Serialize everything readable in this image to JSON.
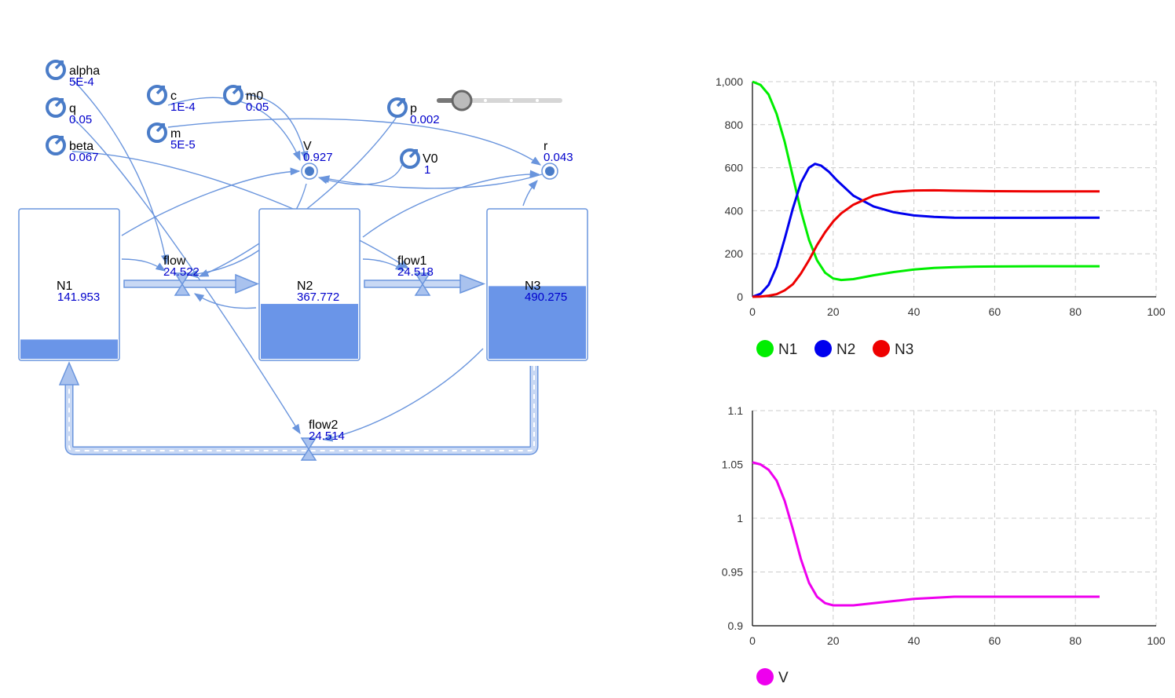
{
  "parameters": [
    {
      "id": "alpha",
      "label": "alpha",
      "value": "5E-4"
    },
    {
      "id": "q",
      "label": "q",
      "value": "0.05"
    },
    {
      "id": "beta",
      "label": "beta",
      "value": "0.067"
    },
    {
      "id": "c",
      "label": "c",
      "value": "1E-4"
    },
    {
      "id": "m",
      "label": "m",
      "value": "5E-5"
    },
    {
      "id": "m0",
      "label": "m0",
      "value": "0.05"
    },
    {
      "id": "p",
      "label": "p",
      "value": "0.002"
    },
    {
      "id": "V0",
      "label": "V0",
      "value": "1"
    }
  ],
  "variables": [
    {
      "id": "V",
      "label": "V",
      "value": "0.927"
    },
    {
      "id": "r",
      "label": "r",
      "value": "0.043"
    }
  ],
  "stocks": [
    {
      "id": "N1",
      "label": "N1",
      "value": "141.953",
      "level": 0.13
    },
    {
      "id": "N2",
      "label": "N2",
      "value": "367.772",
      "level": 0.37
    },
    {
      "id": "N3",
      "label": "N3",
      "value": "490.275",
      "level": 0.49
    }
  ],
  "flows": [
    {
      "id": "flow",
      "label": "flow",
      "value": "24.522"
    },
    {
      "id": "flow1",
      "label": "flow1",
      "value": "24.518"
    },
    {
      "id": "flow2",
      "label": "flow2",
      "value": "24.514"
    }
  ],
  "slider": {
    "value": 0.2
  },
  "colors": {
    "accent": "#6a95dd",
    "stock_fill": "#6a95e8",
    "value_text": "#0000cc",
    "N1": "#00ee00",
    "N2": "#0000ee",
    "N3": "#ee0000",
    "V": "#ee00ee"
  },
  "chart_data": [
    {
      "type": "line",
      "xlim": [
        0,
        100
      ],
      "ylim": [
        0,
        1000
      ],
      "x_ticks": [
        "0",
        "20",
        "40",
        "60",
        "80",
        "100"
      ],
      "y_ticks": [
        "0",
        "200",
        "400",
        "600",
        "800",
        "1,000"
      ],
      "grid": true,
      "legend_position": "bottom-left",
      "series": [
        {
          "name": "N1",
          "color": "#00ee00",
          "points": [
            [
              0,
              1000
            ],
            [
              2,
              985
            ],
            [
              4,
              940
            ],
            [
              6,
              850
            ],
            [
              8,
              720
            ],
            [
              10,
              560
            ],
            [
              12,
              400
            ],
            [
              14,
              265
            ],
            [
              16,
              170
            ],
            [
              18,
              112
            ],
            [
              20,
              85
            ],
            [
              22,
              78
            ],
            [
              25,
              82
            ],
            [
              30,
              100
            ],
            [
              35,
              115
            ],
            [
              40,
              127
            ],
            [
              45,
              134
            ],
            [
              50,
              138
            ],
            [
              55,
              140
            ],
            [
              60,
              141
            ],
            [
              70,
              142
            ],
            [
              80,
              142
            ],
            [
              86,
              142
            ]
          ]
        },
        {
          "name": "N2",
          "color": "#0000ee",
          "points": [
            [
              0,
              0
            ],
            [
              2,
              14
            ],
            [
              4,
              55
            ],
            [
              6,
              140
            ],
            [
              8,
              270
            ],
            [
              10,
              410
            ],
            [
              12,
              530
            ],
            [
              14,
              600
            ],
            [
              15.5,
              618
            ],
            [
              17,
              610
            ],
            [
              19,
              580
            ],
            [
              21,
              540
            ],
            [
              25,
              470
            ],
            [
              30,
              420
            ],
            [
              35,
              393
            ],
            [
              40,
              378
            ],
            [
              45,
              371
            ],
            [
              50,
              368
            ],
            [
              60,
              367
            ],
            [
              70,
              367
            ],
            [
              80,
              368
            ],
            [
              86,
              368
            ]
          ]
        },
        {
          "name": "N3",
          "color": "#ee0000",
          "points": [
            [
              0,
              0
            ],
            [
              2,
              1
            ],
            [
              4,
              5
            ],
            [
              6,
              12
            ],
            [
              8,
              30
            ],
            [
              10,
              58
            ],
            [
              12,
              108
            ],
            [
              14,
              170
            ],
            [
              16,
              240
            ],
            [
              18,
              300
            ],
            [
              20,
              350
            ],
            [
              22,
              388
            ],
            [
              25,
              428
            ],
            [
              30,
              470
            ],
            [
              35,
              488
            ],
            [
              40,
              494
            ],
            [
              45,
              495
            ],
            [
              50,
              493
            ],
            [
              60,
              491
            ],
            [
              70,
              490
            ],
            [
              80,
              490
            ],
            [
              86,
              490
            ]
          ]
        }
      ]
    },
    {
      "type": "line",
      "xlim": [
        0,
        100
      ],
      "ylim": [
        0.9,
        1.1
      ],
      "x_ticks": [
        "0",
        "20",
        "40",
        "60",
        "80",
        "100"
      ],
      "y_ticks": [
        "0.9",
        "0.95",
        "1",
        "1.05",
        "1.1"
      ],
      "grid": true,
      "legend_position": "bottom-left",
      "series": [
        {
          "name": "V",
          "color": "#ee00ee",
          "points": [
            [
              0,
              1.052
            ],
            [
              2,
              1.05
            ],
            [
              4,
              1.045
            ],
            [
              6,
              1.035
            ],
            [
              8,
              1.016
            ],
            [
              10,
              0.99
            ],
            [
              12,
              0.962
            ],
            [
              14,
              0.94
            ],
            [
              16,
              0.927
            ],
            [
              18,
              0.921
            ],
            [
              20,
              0.919
            ],
            [
              22,
              0.919
            ],
            [
              25,
              0.919
            ],
            [
              30,
              0.921
            ],
            [
              35,
              0.923
            ],
            [
              40,
              0.925
            ],
            [
              45,
              0.926
            ],
            [
              50,
              0.927
            ],
            [
              60,
              0.927
            ],
            [
              70,
              0.927
            ],
            [
              80,
              0.927
            ],
            [
              86,
              0.927
            ]
          ]
        }
      ]
    }
  ]
}
